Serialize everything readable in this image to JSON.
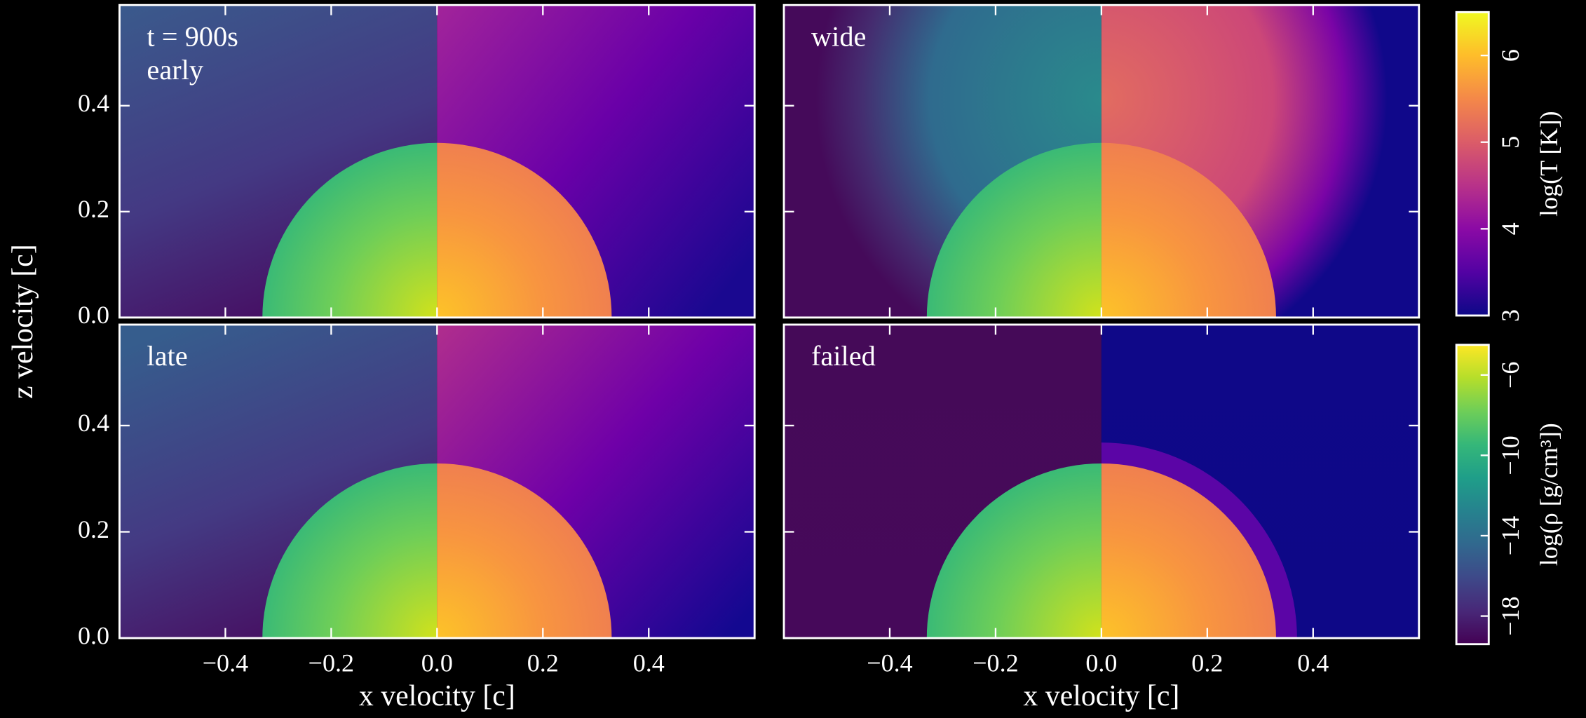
{
  "chart_data": [
    {
      "type": "image",
      "annotation": [
        "t = 900s",
        "early"
      ],
      "ylabel": "z velocity [c]",
      "xlim": [
        -0.6,
        0.6
      ],
      "ylim": [
        0,
        0.59
      ],
      "xticks": [
        -0.4,
        -0.2,
        0,
        0.2,
        0.4
      ],
      "yticks": [
        {
          "value": 0,
          "label": "0.0"
        },
        {
          "value": 0.2,
          "label": "0.2"
        },
        {
          "value": 0.4,
          "label": "0.4"
        }
      ]
    },
    {
      "type": "image",
      "annotation": [
        "wide"
      ],
      "xlim": [
        -0.6,
        0.6
      ],
      "ylim": [
        0,
        0.59
      ],
      "xticks": [
        -0.4,
        -0.2,
        0,
        0.2,
        0.4
      ],
      "yticks": [
        0,
        0.2,
        0.4
      ]
    },
    {
      "type": "image",
      "annotation": [
        "late"
      ],
      "xlabel": "x velocity [c]",
      "xlim": [
        -0.6,
        0.6
      ],
      "ylim": [
        0,
        0.59
      ],
      "xticks": [
        {
          "value": -0.4,
          "label": "−0.4"
        },
        {
          "value": -0.2,
          "label": "−0.2"
        },
        {
          "value": 0,
          "label": "0.0"
        },
        {
          "value": 0.2,
          "label": "0.2"
        },
        {
          "value": 0.4,
          "label": "0.4"
        }
      ],
      "yticks": [
        {
          "value": 0,
          "label": "0.0"
        },
        {
          "value": 0.2,
          "label": "0.2"
        },
        {
          "value": 0.4,
          "label": "0.4"
        }
      ]
    },
    {
      "type": "image",
      "annotation": [
        "failed"
      ],
      "xlabel": "x velocity [c]",
      "xlim": [
        -0.6,
        0.6
      ],
      "ylim": [
        0,
        0.59
      ],
      "xticks": [
        {
          "value": -0.4,
          "label": "−0.4"
        },
        {
          "value": -0.2,
          "label": "−0.2"
        },
        {
          "value": 0,
          "label": "0.0"
        },
        {
          "value": 0.2,
          "label": "0.2"
        },
        {
          "value": 0.4,
          "label": "0.4"
        }
      ],
      "yticks": [
        0,
        0.2,
        0.4
      ]
    },
    {
      "type": "colorbar",
      "label": "log(T [K])",
      "ylim": [
        3,
        6.5
      ],
      "yticks": [
        3,
        4,
        5,
        6
      ],
      "colors": [
        "#0d0887",
        "#5302a3",
        "#8b0aa5",
        "#b83289",
        "#db5c68",
        "#f48849",
        "#febd2a",
        "#f0f921"
      ]
    },
    {
      "type": "colorbar",
      "label": "log(ρ [g/cm³])",
      "ylim": [
        -19.4,
        -4.5
      ],
      "yticks": [
        {
          "value": -18,
          "label": "−18"
        },
        {
          "value": -14,
          "label": "−14"
        },
        {
          "value": -10,
          "label": "−10"
        },
        {
          "value": -6,
          "label": "−6"
        }
      ],
      "colors": [
        "#440154",
        "#482878",
        "#3e4989",
        "#31688e",
        "#26828e",
        "#1f9e89",
        "#35b779",
        "#6ece58",
        "#b5de2b",
        "#fde725"
      ]
    }
  ]
}
